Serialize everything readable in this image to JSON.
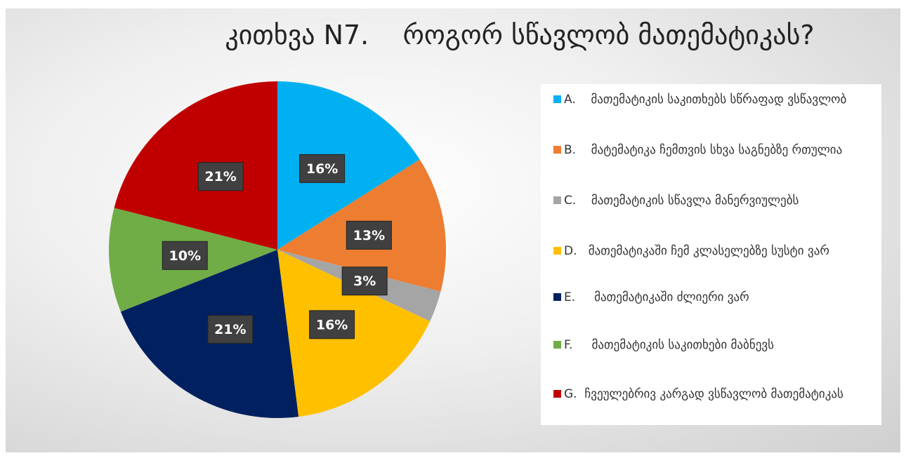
{
  "chart_data": {
    "type": "pie",
    "title": "კითხვა N7.    როგორ სწავლობ მათემატიკას?",
    "categories": [
      "A.    მათემატიკის საკითხებს სწრაფად ვსწავლობ",
      "B.    მატემატიკა ჩემთვის სხვა საგნებზე რთულია",
      "C.    მათემატიკის სწავლა მანერვიულებს",
      "D.   მათემატიკაში ჩემ კლასელებზე სუსტი ვარ",
      "E.     მათემატიკაში ძლიერი ვარ",
      "F.     მათემატიკის საკითხები მაბნევს",
      "G.  ჩვეულებრივ კარგად ვსწავლობ მათემატიკას"
    ],
    "values": [
      16,
      13,
      3,
      16,
      21,
      10,
      21
    ],
    "value_labels": [
      "16%",
      "13%",
      "3%",
      "16%",
      "21%",
      "10%",
      "21%"
    ],
    "colors": [
      "#00b0f0",
      "#ed7d31",
      "#a5a5a5",
      "#ffc000",
      "#002060",
      "#70ad47",
      "#c00000"
    ],
    "legend": "right"
  }
}
